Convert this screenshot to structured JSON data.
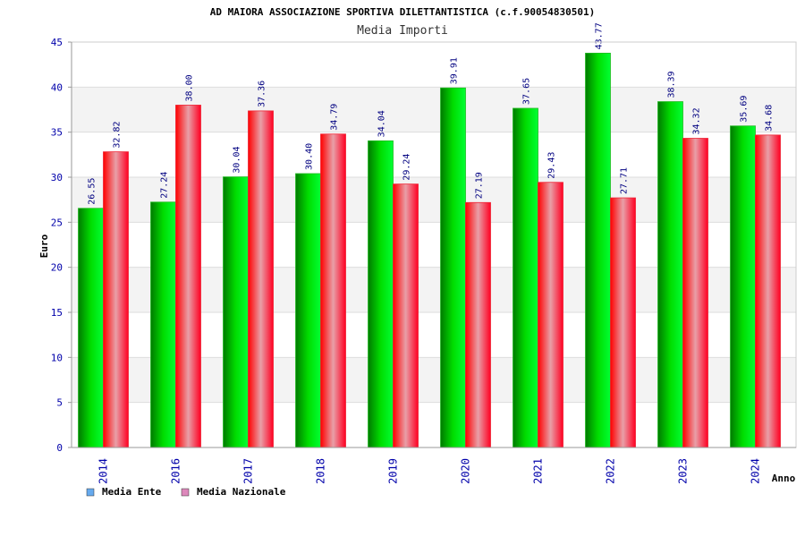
{
  "chart_data": {
    "type": "bar",
    "title": "AD MAIORA ASSOCIAZIONE SPORTIVA DILETTANTISTICA (c.f.90054830501)",
    "subtitle": "Media Importi",
    "xlabel": "Anno",
    "ylabel": "Euro",
    "ylim": [
      0,
      45
    ],
    "yticks": [
      0,
      5,
      10,
      15,
      20,
      25,
      30,
      35,
      40,
      45
    ],
    "grid": true,
    "legend_position": "bottom-left",
    "categories": [
      "2014",
      "2016",
      "2017",
      "2018",
      "2019",
      "2020",
      "2021",
      "2022",
      "2023",
      "2024"
    ],
    "series": [
      {
        "name": "Media Ente",
        "color": "#00cc00",
        "legend_color": "#66aaee",
        "values": [
          26.55,
          27.24,
          30.04,
          30.4,
          34.04,
          39.91,
          37.65,
          43.77,
          38.39,
          35.69
        ],
        "labels": [
          "26.55",
          "27.24",
          "30.04",
          "30.40",
          "34.04",
          "39.91",
          "37.65",
          "43.77",
          "38.39",
          "35.69"
        ]
      },
      {
        "name": "Media Nazionale",
        "color": "#ee1122",
        "legend_color": "#dd88bb",
        "values": [
          32.82,
          38.0,
          37.36,
          34.79,
          29.24,
          27.19,
          29.43,
          27.71,
          34.32,
          34.68
        ],
        "labels": [
          "32.82",
          "38.00",
          "37.36",
          "34.79",
          "29.24",
          "27.19",
          "29.43",
          "27.71",
          "34.32",
          "34.68"
        ]
      }
    ]
  }
}
